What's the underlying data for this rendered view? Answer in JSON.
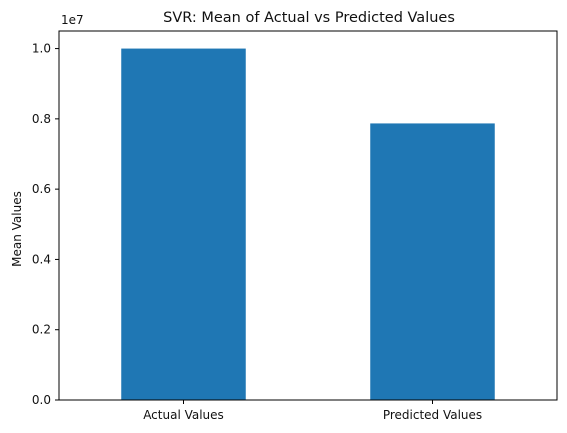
{
  "chart_data": {
    "type": "bar",
    "title": "SVR: Mean of Actual vs Predicted Values",
    "ylabel": "Mean Values",
    "xlabel": "",
    "categories": [
      "Actual Values",
      "Predicted Values"
    ],
    "values": [
      10000000,
      7870000
    ],
    "ylim": [
      0,
      10500000
    ],
    "y_ticks": [
      0,
      2000000,
      4000000,
      6000000,
      8000000,
      10000000
    ],
    "y_tick_labels": [
      "0.0",
      "0.2",
      "0.4",
      "0.6",
      "0.8",
      "1.0"
    ],
    "y_offset_label": "1e7",
    "bar_color": "#1f77b4",
    "grid": false
  }
}
